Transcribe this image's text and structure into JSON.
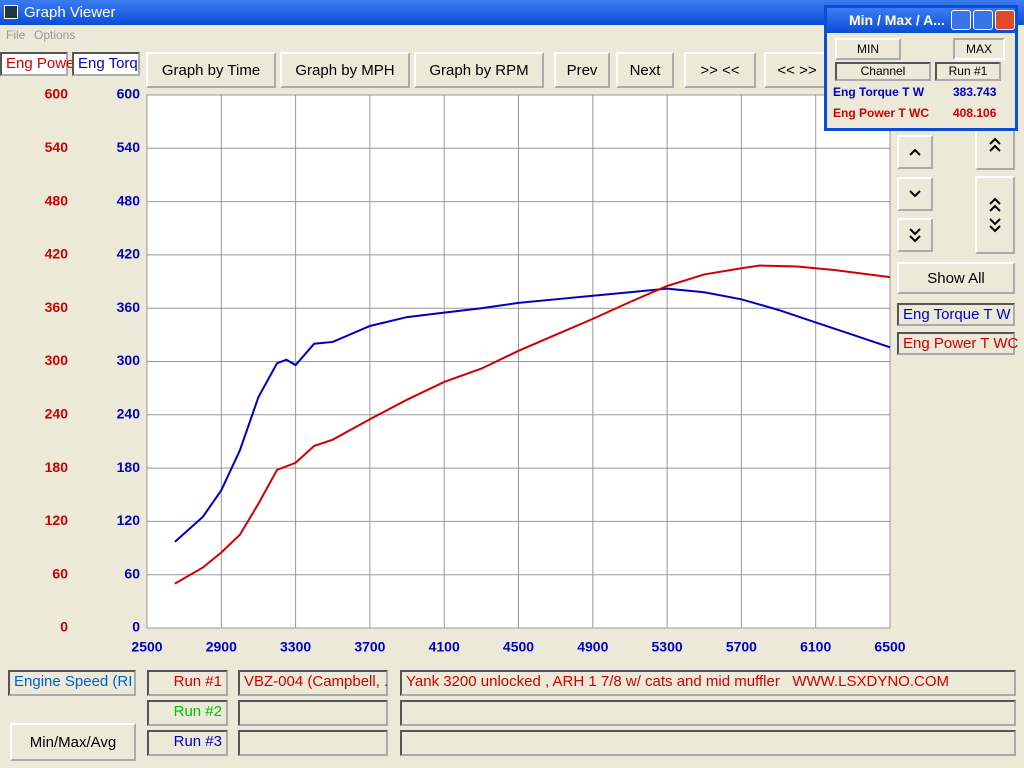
{
  "window": {
    "title": "Graph Viewer",
    "menu": [
      "File",
      "Options"
    ]
  },
  "channel_fields": [
    "Eng Powe",
    "Eng Torq"
  ],
  "toolbar": [
    "Graph by Time",
    "Graph by MPH",
    "Graph by RPM",
    "Prev",
    "Next",
    ">> <<",
    "<< >>"
  ],
  "chart_data": {
    "type": "line",
    "xlim": [
      2500,
      6500
    ],
    "xticks": [
      2500,
      2900,
      3300,
      3700,
      4100,
      4500,
      4900,
      5300,
      5700,
      6100,
      6500
    ],
    "ylim": [
      0,
      600
    ],
    "yticks": [
      0,
      60,
      120,
      180,
      240,
      300,
      360,
      420,
      480,
      540,
      600
    ],
    "y2lim": [
      0,
      600
    ],
    "y2ticks": [
      0,
      60,
      120,
      180,
      240,
      300,
      360,
      420,
      480,
      540,
      600
    ],
    "grid": true,
    "series": [
      {
        "name": "Eng Torque T W",
        "color": "#0000c0",
        "x": [
          2650,
          2800,
          2900,
          3000,
          3100,
          3200,
          3250,
          3300,
          3400,
          3500,
          3700,
          3900,
          4100,
          4300,
          4500,
          4700,
          4900,
          5100,
          5300,
          5500,
          5700,
          5900,
          6100,
          6300,
          6500
        ],
        "values": [
          97,
          125,
          155,
          200,
          260,
          298,
          302,
          296,
          320,
          322,
          340,
          350,
          355,
          360,
          366,
          370,
          374,
          378,
          382,
          378,
          370,
          358,
          344,
          330,
          316
        ]
      },
      {
        "name": "Eng Power T WC",
        "color": "#d00000",
        "axis": "y2",
        "x": [
          2650,
          2800,
          2900,
          3000,
          3100,
          3200,
          3300,
          3400,
          3500,
          3700,
          3900,
          4100,
          4300,
          4500,
          4700,
          4900,
          5100,
          5300,
          5500,
          5700,
          5800,
          6000,
          6200,
          6500
        ],
        "values": [
          50,
          68,
          85,
          105,
          140,
          178,
          186,
          205,
          212,
          235,
          257,
          277,
          292,
          312,
          330,
          348,
          367,
          385,
          398,
          405,
          408,
          407,
          403,
          395
        ]
      }
    ]
  },
  "minmax_window": {
    "title": "Min / Max / A...",
    "buttons": [
      "MIN",
      "MAX"
    ],
    "columns": [
      "Channel",
      "Run #1"
    ],
    "values": [
      383.743,
      408.106
    ]
  },
  "side_panel": {
    "button": "Show All"
  },
  "footer": {
    "x_channel": "Engine Speed (RI",
    "runs": [
      {
        "label": "Run #1",
        "name": "VBZ-004 (Campbell, .",
        "notes": "Yank 3200 unlocked , ARH 1 7/8 w/ cats and mid muffler   WWW.LSXDYNO.COM"
      },
      {
        "label": "Run #2"
      },
      {
        "label": "Run #3"
      }
    ],
    "button": "Min/Max/Avg"
  }
}
